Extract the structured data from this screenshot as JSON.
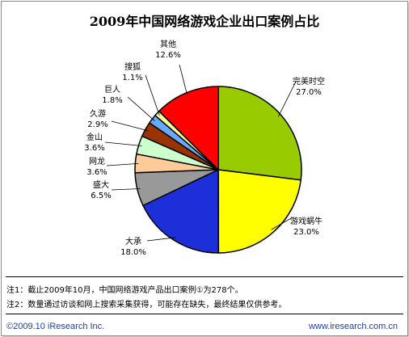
{
  "title": "2009年中国网络游戏企业出口案例占比",
  "chart_data": {
    "type": "pie",
    "title": "2009年中国网络游戏企业出口案例占比",
    "slices": [
      {
        "label": "完美时空",
        "value": 27.0,
        "display": "27.0%",
        "color": "#99cc00"
      },
      {
        "label": "游戏蜗牛",
        "value": 23.0,
        "display": "23.0%",
        "color": "#ffff00"
      },
      {
        "label": "大承",
        "value": 18.0,
        "display": "18.0%",
        "color": "#1c2fd8"
      },
      {
        "label": "盛大",
        "value": 6.5,
        "display": "6.5%",
        "color": "#999999"
      },
      {
        "label": "网龙",
        "value": 3.6,
        "display": "3.6%",
        "color": "#ffcc99"
      },
      {
        "label": "金山",
        "value": 3.6,
        "display": "3.6%",
        "color": "#ccffcc"
      },
      {
        "label": "久游",
        "value": 2.9,
        "display": "2.9%",
        "color": "#993300"
      },
      {
        "label": "巨人",
        "value": 1.8,
        "display": "1.8%",
        "color": "#66aaff"
      },
      {
        "label": "搜狐",
        "value": 1.1,
        "display": "1.1%",
        "color": "#ffff99"
      },
      {
        "label": "其他",
        "value": 12.6,
        "display": "12.6%",
        "color": "#ff0000"
      }
    ]
  },
  "notes": [
    "注1：截止2009年10月，中国网络游戏产品出口案例①为278个。",
    "注2：数量通过访谈和网上搜索采集获得，可能存在缺失，最终结果仅供参考。"
  ],
  "footer": {
    "copyright": "©2009.10 iResearch Inc.",
    "website": "www.iresearch.com.cn"
  }
}
